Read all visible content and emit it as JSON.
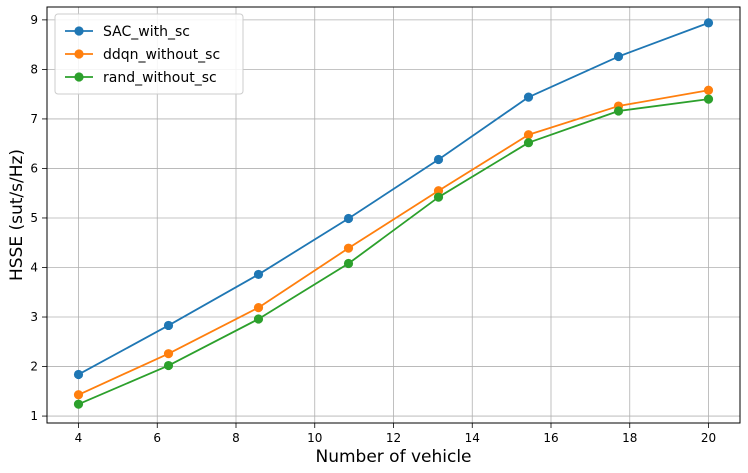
{
  "chart_data": {
    "type": "line",
    "x": [
      4,
      6.2857,
      8.5714,
      10.8571,
      13.1429,
      15.4286,
      17.7143,
      20
    ],
    "series": [
      {
        "name": "SAC_with_sc",
        "color": "#1f77b4",
        "values": [
          1.84,
          2.83,
          3.86,
          4.99,
          6.18,
          7.44,
          8.26,
          8.94
        ]
      },
      {
        "name": "ddqn_without_sc",
        "color": "#ff7f0e",
        "values": [
          1.43,
          2.26,
          3.19,
          4.39,
          5.55,
          6.68,
          7.26,
          7.58
        ]
      },
      {
        "name": "rand_without_sc",
        "color": "#2ca02c",
        "values": [
          1.24,
          2.02,
          2.96,
          4.08,
          5.42,
          6.52,
          7.16,
          7.4
        ]
      }
    ],
    "xlabel": "Number of vehicle",
    "ylabel": "HSSE (sut/s/Hz)",
    "xlim": [
      3.2,
      20.8
    ],
    "ylim": [
      0.86,
      9.26
    ],
    "xticks": [
      4,
      6,
      8,
      10,
      12,
      14,
      16,
      18,
      20
    ],
    "yticks": [
      1,
      2,
      3,
      4,
      5,
      6,
      7,
      8,
      9
    ],
    "grid": true,
    "legend_position": "top-left",
    "marker": "circle"
  }
}
